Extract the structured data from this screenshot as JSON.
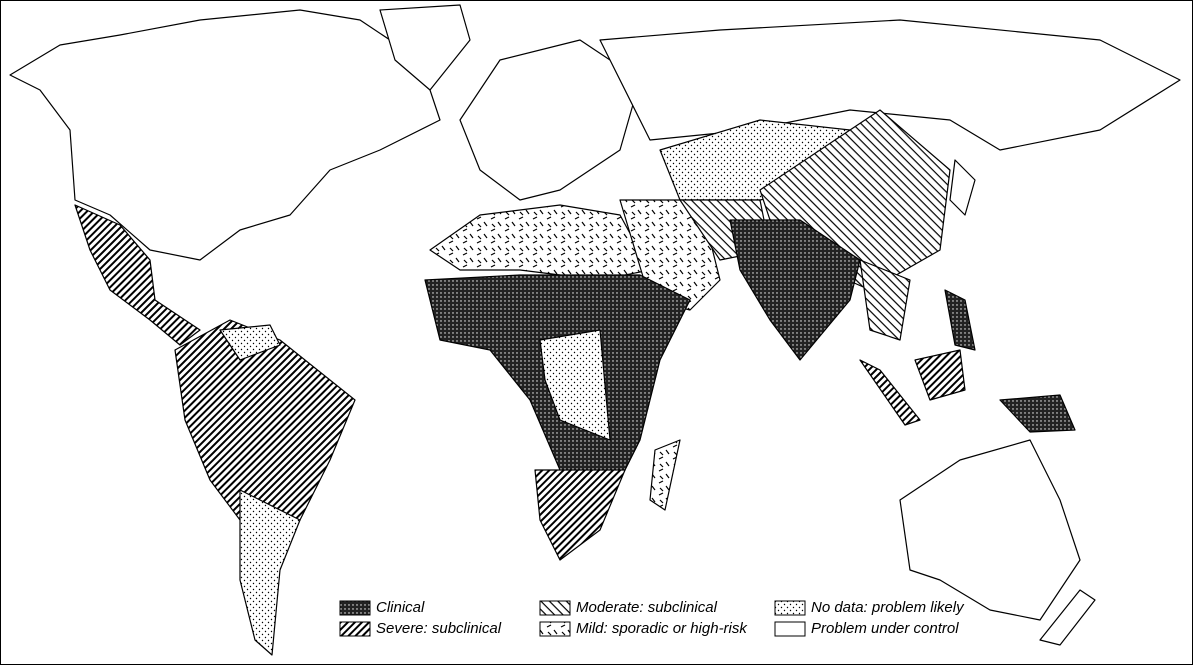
{
  "legend": {
    "items": [
      {
        "label": "Clinical"
      },
      {
        "label": "Severe: subclinical"
      },
      {
        "label": "Moderate: subclinical"
      },
      {
        "label": "Mild: sporadic or high-risk"
      },
      {
        "label": "No data: problem likely"
      },
      {
        "label": "Problem under control"
      }
    ]
  }
}
